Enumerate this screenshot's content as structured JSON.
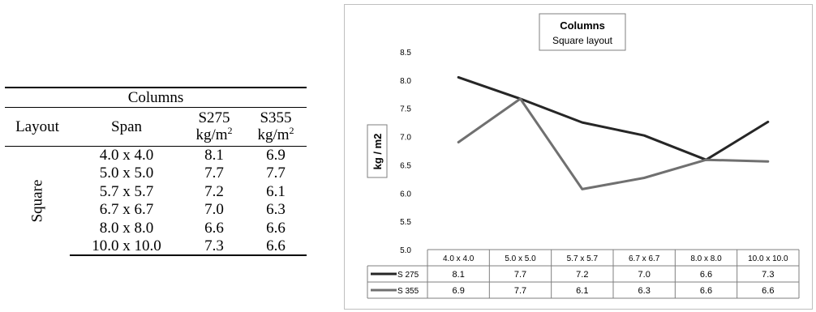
{
  "table": {
    "title": "Columns",
    "headers": {
      "layout": "Layout",
      "span": "Span",
      "s275": "S275",
      "s355": "S355",
      "unit_base": "kg/m",
      "unit_exp": "2"
    },
    "layout_label": "Square",
    "rows": [
      {
        "span": "4.0 x 4.0",
        "s275": "8.1",
        "s355": "6.9"
      },
      {
        "span": "5.0 x 5.0",
        "s275": "7.7",
        "s355": "7.7"
      },
      {
        "span": "5.7 x 5.7",
        "s275": "7.2",
        "s355": "6.1"
      },
      {
        "span": "6.7 x 6.7",
        "s275": "7.0",
        "s355": "6.3"
      },
      {
        "span": "8.0 x 8.0",
        "s275": "6.6",
        "s355": "6.6"
      },
      {
        "span": "10.0 x 10.0",
        "s275": "7.3",
        "s355": "6.6"
      }
    ]
  },
  "chart_data": {
    "type": "line",
    "title": "Columns",
    "subtitle": "Square layout",
    "ylabel": "kg / m2",
    "xlabel": "",
    "ylim": [
      5.0,
      8.5
    ],
    "yticks": [
      "5.0",
      "5.5",
      "6.0",
      "6.5",
      "7.0",
      "7.5",
      "8.0",
      "8.5"
    ],
    "categories": [
      "4.0 x 4.0",
      "5.0 x 5.0",
      "5.7 x 5.7",
      "6.7 x 6.7",
      "8.0 x 8.0",
      "10.0 x 10.0"
    ],
    "grid": false,
    "legend": "data-table-below",
    "series": [
      {
        "name": "S 275",
        "color": "#262626",
        "values": [
          8.05,
          7.67,
          7.25,
          7.02,
          6.59,
          7.26
        ],
        "labels": [
          "8.1",
          "7.7",
          "7.2",
          "7.0",
          "6.6",
          "7.3"
        ]
      },
      {
        "name": "S 355",
        "color": "#707070",
        "values": [
          6.9,
          7.67,
          6.07,
          6.27,
          6.59,
          6.56
        ],
        "labels": [
          "6.9",
          "7.7",
          "6.1",
          "6.3",
          "6.6",
          "6.6"
        ]
      }
    ]
  }
}
